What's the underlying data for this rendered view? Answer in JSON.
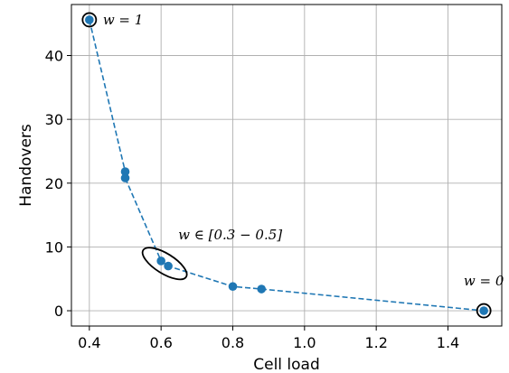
{
  "chart_data": {
    "type": "line",
    "xlabel": "Cell load",
    "ylabel": "Handovers",
    "xlim": [
      0.35,
      1.55
    ],
    "ylim": [
      -2.4,
      48
    ],
    "xticks": [
      "0.4",
      "0.6",
      "0.8",
      "1.0",
      "1.2",
      "1.4"
    ],
    "xtick_values": [
      0.4,
      0.6,
      0.8,
      1.0,
      1.2,
      1.4
    ],
    "yticks": [
      "0",
      "10",
      "20",
      "30",
      "40"
    ],
    "ytick_values": [
      0,
      10,
      20,
      30,
      40
    ],
    "grid": true,
    "series": [
      {
        "style": "dashed line with markers",
        "color": "#1f77b4",
        "x": [
          0.4,
          0.5,
          0.5,
          0.6,
          0.62,
          0.8,
          0.88,
          1.5
        ],
        "y": [
          45.6,
          21.8,
          20.8,
          7.8,
          7.0,
          3.8,
          3.4,
          0.0
        ]
      }
    ],
    "annotations": [
      {
        "text": "w = 1",
        "x": 0.4,
        "y": 45.6,
        "highlight": "circle"
      },
      {
        "text": "w ∈ [0.3 − 0.5]",
        "x": 0.61,
        "y": 7.4,
        "highlight": "ellipse"
      },
      {
        "text": "w = 0",
        "x": 1.5,
        "y": 0.0,
        "highlight": "circle"
      }
    ]
  }
}
